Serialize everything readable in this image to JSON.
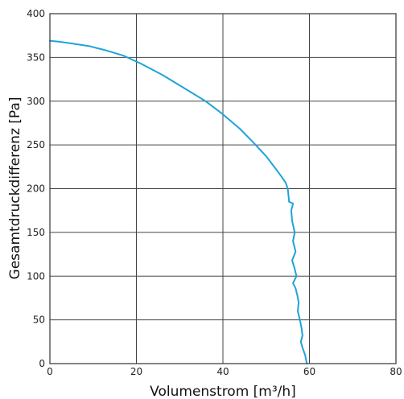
{
  "chart_data": {
    "type": "line",
    "title": "",
    "xlabel": "Volumenstrom [m³/h]",
    "ylabel": "Gesamtdruckdifferenz [Pa]",
    "xlim": [
      0,
      80
    ],
    "ylim": [
      0,
      400
    ],
    "xticks": [
      0,
      20,
      40,
      60,
      80
    ],
    "yticks": [
      0,
      50,
      100,
      150,
      200,
      250,
      300,
      350,
      400
    ],
    "grid": true,
    "line_color": "#1fa3d8",
    "series": [
      {
        "x": [
          0,
          2,
          5,
          9,
          13,
          17,
          21,
          26,
          31,
          36,
          40,
          44,
          47,
          50,
          52,
          53.5,
          54.5,
          55,
          55.2,
          55.3,
          56.2,
          55.8,
          56,
          56.6,
          56.2,
          56.8,
          56,
          56.5,
          57,
          56.2,
          56.8,
          57.2,
          57.5,
          57.3,
          57.8,
          58.2,
          58.4,
          58,
          58.4,
          59,
          59.4
        ],
        "y": [
          369,
          368,
          366,
          363,
          358,
          352,
          343,
          330,
          315,
          300,
          285,
          268,
          253,
          237,
          224,
          214,
          207,
          200,
          190,
          185,
          183,
          175,
          163,
          150,
          140,
          128,
          118,
          110,
          100,
          92,
          86,
          78,
          70,
          60,
          50,
          40,
          32,
          25,
          18,
          10,
          0
        ]
      }
    ]
  }
}
